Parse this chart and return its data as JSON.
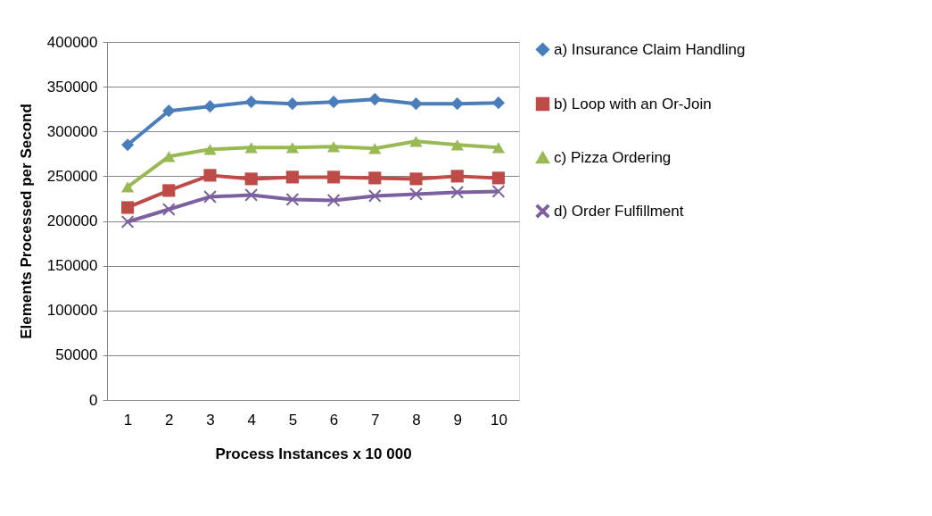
{
  "chart_data": {
    "type": "line",
    "xlabel": "Process Instances x 10 000",
    "ylabel": "Elements Processed per Second",
    "categories": [
      "1",
      "2",
      "3",
      "4",
      "5",
      "6",
      "7",
      "8",
      "9",
      "10"
    ],
    "ylim": [
      0,
      400000
    ],
    "yticks": [
      0,
      50000,
      100000,
      150000,
      200000,
      250000,
      300000,
      350000,
      400000
    ],
    "grid": "y",
    "legend": "right",
    "line_style": "solid",
    "series": [
      {
        "name": "a) Insurance Claim Handling",
        "color": "#4a7ebb",
        "marker": "diamond",
        "values": [
          285000,
          323000,
          328000,
          333000,
          331000,
          333000,
          336000,
          331000,
          331000,
          332000
        ]
      },
      {
        "name": "b) Loop with an Or-Join",
        "color": "#be4b48",
        "marker": "square",
        "values": [
          215000,
          234000,
          251000,
          247000,
          249000,
          249000,
          248000,
          247000,
          250000,
          248000
        ]
      },
      {
        "name": "c) Pizza Ordering",
        "color": "#98b954",
        "marker": "triangle",
        "values": [
          238000,
          272000,
          280000,
          282000,
          282000,
          283000,
          281000,
          289000,
          285000,
          282000
        ]
      },
      {
        "name": "d) Order Fulfillment",
        "color": "#7d60a0",
        "marker": "cross",
        "values": [
          199000,
          213000,
          227000,
          229000,
          224000,
          223000,
          228000,
          230000,
          232000,
          233000
        ]
      }
    ]
  }
}
